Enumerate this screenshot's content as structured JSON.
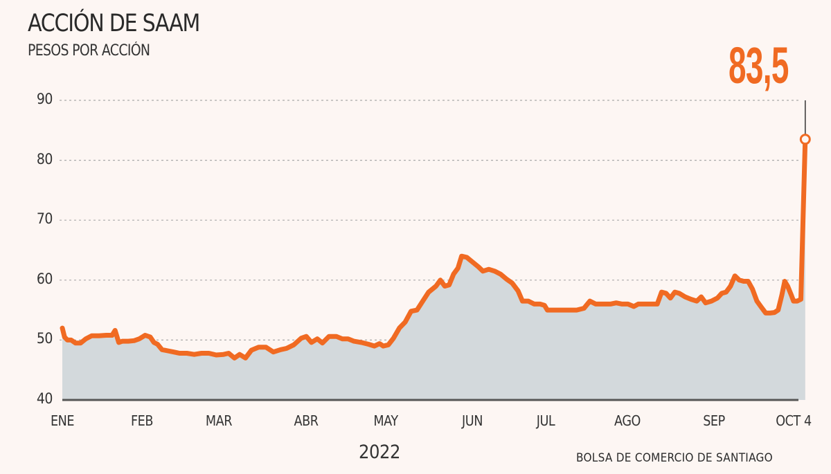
{
  "header": {
    "title": "ACCIÓN DE SAAM",
    "subtitle": "PESOS POR ACCIÓN"
  },
  "callout": {
    "value_label": "83,5"
  },
  "footer": {
    "year": "2022",
    "source": "BOLSA DE COMERCIO DE SANTIAGO"
  },
  "colors": {
    "background": "#fdf6f3",
    "line": "#f06a22",
    "area_fill": "#d3d9dc",
    "grid": "#a9a9a9",
    "axis": "#555555",
    "callout": "#f06a22"
  },
  "chart_data": {
    "type": "area",
    "title": "ACCIÓN DE SAAM",
    "subtitle": "PESOS POR ACCIÓN",
    "xlabel": "2022",
    "ylabel": "Pesos por acción",
    "ylim": [
      40,
      90
    ],
    "yticks": [
      40,
      50,
      60,
      70,
      80,
      90
    ],
    "grid": true,
    "grid_style": "dotted horizontal",
    "legend": null,
    "source": "BOLSA DE COMERCIO DE SANTIAGO",
    "annotation": {
      "label": "83,5",
      "value": 83.5,
      "at": "OCT 4"
    },
    "month_ticks": [
      {
        "label": "ENE",
        "t": 0
      },
      {
        "label": "FEB",
        "t": 1.09
      },
      {
        "label": "MAR",
        "t": 2.14
      },
      {
        "label": "ABR",
        "t": 3.33
      },
      {
        "label": "MAY",
        "t": 4.41
      },
      {
        "label": "JUN",
        "t": 5.6
      },
      {
        "label": "JUL",
        "t": 6.6
      },
      {
        "label": "AGO",
        "t": 7.71
      },
      {
        "label": "SEP",
        "t": 8.89
      },
      {
        "label": "OCT 4",
        "t": 10.0
      }
    ],
    "series": [
      {
        "name": "SAAM",
        "points": [
          [
            0.0,
            52.0
          ],
          [
            0.03,
            50.5
          ],
          [
            0.07,
            50.0
          ],
          [
            0.12,
            50.0
          ],
          [
            0.18,
            49.5
          ],
          [
            0.25,
            49.5
          ],
          [
            0.32,
            50.2
          ],
          [
            0.4,
            50.7
          ],
          [
            0.5,
            50.7
          ],
          [
            0.6,
            50.8
          ],
          [
            0.68,
            50.8
          ],
          [
            0.72,
            51.6
          ],
          [
            0.77,
            49.6
          ],
          [
            0.82,
            49.8
          ],
          [
            0.9,
            49.8
          ],
          [
            0.98,
            49.9
          ],
          [
            1.05,
            50.2
          ],
          [
            1.13,
            50.8
          ],
          [
            1.2,
            50.5
          ],
          [
            1.25,
            49.6
          ],
          [
            1.3,
            49.3
          ],
          [
            1.36,
            48.4
          ],
          [
            1.44,
            48.2
          ],
          [
            1.52,
            48.0
          ],
          [
            1.6,
            47.8
          ],
          [
            1.7,
            47.8
          ],
          [
            1.8,
            47.6
          ],
          [
            1.9,
            47.8
          ],
          [
            2.0,
            47.8
          ],
          [
            2.1,
            47.5
          ],
          [
            2.2,
            47.6
          ],
          [
            2.27,
            47.8
          ],
          [
            2.35,
            47.0
          ],
          [
            2.42,
            47.6
          ],
          [
            2.5,
            47.0
          ],
          [
            2.58,
            48.3
          ],
          [
            2.68,
            48.8
          ],
          [
            2.78,
            48.8
          ],
          [
            2.88,
            48.0
          ],
          [
            2.98,
            48.4
          ],
          [
            3.06,
            48.6
          ],
          [
            3.16,
            49.2
          ],
          [
            3.26,
            50.3
          ],
          [
            3.33,
            50.6
          ],
          [
            3.4,
            49.6
          ],
          [
            3.48,
            50.2
          ],
          [
            3.55,
            49.5
          ],
          [
            3.64,
            50.6
          ],
          [
            3.74,
            50.6
          ],
          [
            3.82,
            50.2
          ],
          [
            3.9,
            50.2
          ],
          [
            3.98,
            49.8
          ],
          [
            4.08,
            49.6
          ],
          [
            4.18,
            49.3
          ],
          [
            4.26,
            49.0
          ],
          [
            4.33,
            49.4
          ],
          [
            4.38,
            49.0
          ],
          [
            4.45,
            49.2
          ],
          [
            4.52,
            50.3
          ],
          [
            4.6,
            52.0
          ],
          [
            4.68,
            53.0
          ],
          [
            4.76,
            54.8
          ],
          [
            4.84,
            55.0
          ],
          [
            4.92,
            56.5
          ],
          [
            5.0,
            58.0
          ],
          [
            5.1,
            59.0
          ],
          [
            5.16,
            60.0
          ],
          [
            5.22,
            59.0
          ],
          [
            5.28,
            59.2
          ],
          [
            5.34,
            61.0
          ],
          [
            5.4,
            62.0
          ],
          [
            5.45,
            64.0
          ],
          [
            5.52,
            63.8
          ],
          [
            5.6,
            63.0
          ],
          [
            5.68,
            62.2
          ],
          [
            5.74,
            61.5
          ],
          [
            5.82,
            61.8
          ],
          [
            5.9,
            61.5
          ],
          [
            5.98,
            61.0
          ],
          [
            6.06,
            60.2
          ],
          [
            6.14,
            59.5
          ],
          [
            6.22,
            58.2
          ],
          [
            6.28,
            56.5
          ],
          [
            6.36,
            56.5
          ],
          [
            6.44,
            56.0
          ],
          [
            6.52,
            56.0
          ],
          [
            6.58,
            55.8
          ],
          [
            6.62,
            55.0
          ],
          [
            6.72,
            55.0
          ],
          [
            6.82,
            55.0
          ],
          [
            6.92,
            55.0
          ],
          [
            7.02,
            55.0
          ],
          [
            7.12,
            55.3
          ],
          [
            7.2,
            56.5
          ],
          [
            7.28,
            56.0
          ],
          [
            7.38,
            56.0
          ],
          [
            7.48,
            56.0
          ],
          [
            7.56,
            56.2
          ],
          [
            7.64,
            56.0
          ],
          [
            7.72,
            56.0
          ],
          [
            7.8,
            55.6
          ],
          [
            7.86,
            56.0
          ],
          [
            7.94,
            56.0
          ],
          [
            8.02,
            56.0
          ],
          [
            8.12,
            56.0
          ],
          [
            8.18,
            58.0
          ],
          [
            8.24,
            57.8
          ],
          [
            8.3,
            57.0
          ],
          [
            8.36,
            58.0
          ],
          [
            8.42,
            57.8
          ],
          [
            8.5,
            57.2
          ],
          [
            8.58,
            56.8
          ],
          [
            8.66,
            56.5
          ],
          [
            8.72,
            57.2
          ],
          [
            8.78,
            56.2
          ],
          [
            8.86,
            56.5
          ],
          [
            8.94,
            57.0
          ],
          [
            9.0,
            57.8
          ],
          [
            9.06,
            58.0
          ],
          [
            9.12,
            59.0
          ],
          [
            9.18,
            60.7
          ],
          [
            9.24,
            60.0
          ],
          [
            9.3,
            59.8
          ],
          [
            9.36,
            59.8
          ],
          [
            9.42,
            58.5
          ],
          [
            9.48,
            56.5
          ],
          [
            9.54,
            55.5
          ],
          [
            9.6,
            54.5
          ],
          [
            9.66,
            54.5
          ],
          [
            9.72,
            54.6
          ],
          [
            9.77,
            55.0
          ],
          [
            9.82,
            57.5
          ],
          [
            9.86,
            59.8
          ],
          [
            9.9,
            59.0
          ],
          [
            9.95,
            57.5
          ],
          [
            9.98,
            56.5
          ],
          [
            10.03,
            56.5
          ],
          [
            10.08,
            56.8
          ],
          [
            10.11,
            70.0
          ],
          [
            10.14,
            83.5
          ]
        ]
      }
    ]
  }
}
